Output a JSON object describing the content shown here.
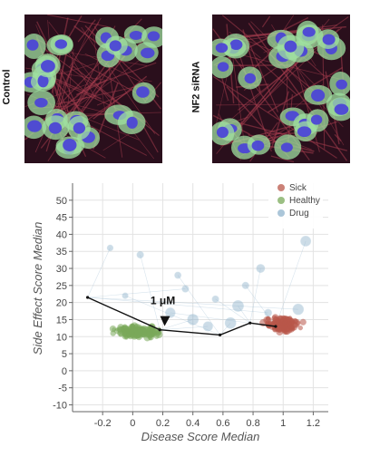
{
  "panels": [
    {
      "label": "Control"
    },
    {
      "label": "NF2 siRNA"
    }
  ],
  "colors": {
    "sick": "#b9574a",
    "healthy": "#7aa95a",
    "drug": "#8fb3cc",
    "line": "#111111",
    "grid": "#e3e3e3",
    "nucleus": "#4c46d6",
    "cytoplasm": "#9fe0a0",
    "actin": "#a43c4d"
  },
  "chart_data": {
    "type": "scatter",
    "xlabel": "Disease Score Median",
    "ylabel": "Side Effect Score Median",
    "xlim": [
      -0.4,
      1.3
    ],
    "ylim": [
      -12,
      55
    ],
    "xticks": [
      -0.2,
      0,
      0.2,
      0.4,
      0.6,
      0.8,
      1,
      1.2
    ],
    "xtick_labels": [
      "-0.2",
      "0",
      "0.2",
      "0.4",
      "0.6",
      "0.8",
      "1",
      "1.2"
    ],
    "yticks": [
      -10,
      -5,
      0,
      5,
      10,
      15,
      20,
      25,
      30,
      35,
      40,
      45,
      50
    ],
    "ytick_labels": [
      "-10",
      "-5",
      "0",
      "5",
      "10",
      "15",
      "20",
      "25",
      "30",
      "35",
      "40",
      "45",
      "50"
    ],
    "grid": true,
    "legend_position": "top-right",
    "series": [
      {
        "name": "Sick",
        "cluster": {
          "x_center": 1.0,
          "x_spread": 0.1,
          "y_center": 13.5,
          "y_spread": 2.0,
          "count": 160
        }
      },
      {
        "name": "Healthy",
        "cluster": {
          "x_center": 0.03,
          "x_spread": 0.16,
          "y_center": 11.5,
          "y_spread": 1.6,
          "count": 200
        }
      },
      {
        "name": "Drug",
        "points": [
          {
            "x": -0.15,
            "y": 36
          },
          {
            "x": 0.05,
            "y": 34
          },
          {
            "x": 0.3,
            "y": 28
          },
          {
            "x": 0.55,
            "y": 21
          },
          {
            "x": 0.75,
            "y": 25
          },
          {
            "x": 0.9,
            "y": 17
          },
          {
            "x": 0.4,
            "y": 15
          },
          {
            "x": 0.65,
            "y": 14
          },
          {
            "x": 0.7,
            "y": 19
          },
          {
            "x": 0.25,
            "y": 17
          },
          {
            "x": 1.1,
            "y": 18
          },
          {
            "x": 0.5,
            "y": 13
          },
          {
            "x": -0.05,
            "y": 22
          },
          {
            "x": 0.85,
            "y": 30
          },
          {
            "x": 1.15,
            "y": 38
          },
          {
            "x": 0.35,
            "y": 24
          }
        ]
      }
    ],
    "trajectory": [
      {
        "x": -0.3,
        "y": 21.5
      },
      {
        "x": 0.18,
        "y": 12
      },
      {
        "x": 0.58,
        "y": 10.5
      },
      {
        "x": 0.78,
        "y": 14
      },
      {
        "x": 0.95,
        "y": 13
      }
    ],
    "annotations": [
      {
        "text": "1 μM",
        "x": 0.2,
        "y": 15.5
      }
    ]
  }
}
